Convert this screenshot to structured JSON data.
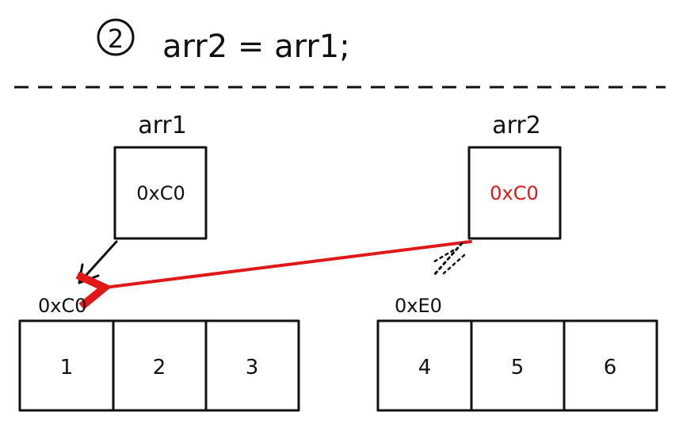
{
  "step": {
    "number": "2",
    "code": "arr2 = arr1;"
  },
  "variables": [
    {
      "name": "arr1",
      "value": "0xC0",
      "value_color": "#111111"
    },
    {
      "name": "arr2",
      "value": "0xC0",
      "value_color": "#e01818"
    }
  ],
  "arrays": [
    {
      "address": "0xC0",
      "cells": [
        "1",
        "2",
        "3"
      ]
    },
    {
      "address": "0xE0",
      "cells": [
        "4",
        "5",
        "6"
      ]
    }
  ],
  "colors": {
    "ink": "#111111",
    "highlight": "#e01818"
  }
}
